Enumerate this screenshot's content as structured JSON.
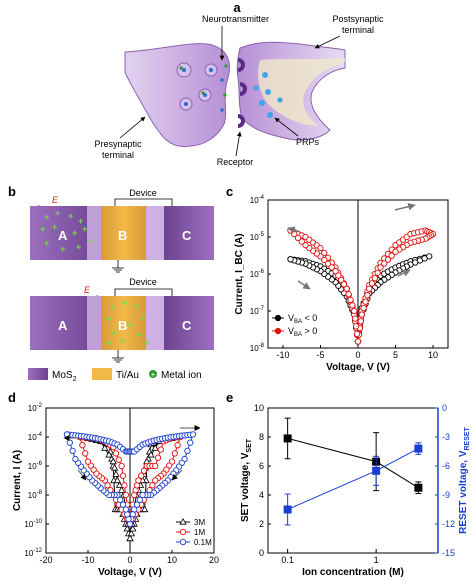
{
  "panels": {
    "a": "a",
    "b": "b",
    "c": "c",
    "d": "d",
    "e": "e"
  },
  "panel_a": {
    "labels": {
      "neurotransmitter": "Neurotransmitter",
      "postsynaptic_1": "Postsynaptic",
      "postsynaptic_2": "terminal",
      "presynaptic_1": "Presynaptic",
      "presynaptic_2": "terminal",
      "receptor": "Receptor",
      "prps": "PRPs"
    }
  },
  "panel_b": {
    "device_label": "Device",
    "field_label": "E",
    "regions": [
      "A",
      "B",
      "C"
    ],
    "legend": {
      "mos2": "MoS",
      "mos2_sub": "2",
      "tiau": "Ti/Au",
      "ion": "Metal ion"
    },
    "colors": {
      "mos2": "#7d55a0",
      "tiau": "#f0b03c",
      "ion": "#2a9a2a",
      "field": "#e02020"
    }
  },
  "chart_data": [
    {
      "id": "c",
      "type": "line",
      "xlabel": "Voltage, V (V)",
      "ylabel": "Current, I_BC (A)",
      "xlim": [
        -12,
        12
      ],
      "ylim_log10": [
        -8,
        -4
      ],
      "x_ticks": [
        "-10",
        "-5",
        "0",
        "5",
        "10"
      ],
      "y_ticks_exp": [
        "-8",
        "-7",
        "-6",
        "-5",
        "-4"
      ],
      "legend": {
        "placement": "bottom-left",
        "entries": [
          {
            "name": "V",
            "sub": "BA",
            "rel": " < 0"
          },
          {
            "name": "V",
            "sub": "BA",
            "rel": " > 0"
          }
        ]
      },
      "series": [
        {
          "name": "V_BA < 0",
          "color": "#000000",
          "marker": "circle",
          "x": [
            -9,
            -7,
            -5,
            -3,
            -1.5,
            -0.5,
            0,
            0.5,
            1.5,
            3,
            5,
            7,
            9.5,
            7,
            5,
            3,
            1.5,
            0.5,
            0,
            -0.5,
            -1.5,
            -3,
            -5,
            -7,
            -9
          ],
          "y": [
            2.5e-06,
            2.2e-06,
            1.6e-06,
            9e-07,
            4e-07,
            9e-08,
            1.5e-08,
            1.2e-07,
            4e-07,
            9e-07,
            1.5e-06,
            2.2e-06,
            3e-06,
            1.8e-06,
            1.1e-06,
            6e-07,
            3e-07,
            8e-08,
            1.5e-08,
            8e-08,
            2.5e-07,
            6e-07,
            1.2e-06,
            1.9e-06,
            2.5e-06
          ]
        },
        {
          "name": "V_BA > 0",
          "color": "#e01010",
          "marker": "circle",
          "x": [
            -9,
            -7,
            -5,
            -3,
            -1.5,
            -0.5,
            0,
            0.5,
            1.5,
            3,
            5,
            7,
            9,
            10,
            9,
            7,
            5,
            3,
            1.5,
            0.5,
            0,
            -0.5,
            -1.5,
            -3,
            -5,
            -7,
            -9
          ],
          "y": [
            1.5e-05,
            1e-05,
            5e-06,
            1.5e-06,
            4e-07,
            8e-08,
            1.5e-08,
            1e-07,
            5e-07,
            2e-06,
            6e-06,
            1.2e-05,
            1.5e-05,
            1.2e-05,
            9e-06,
            7e-06,
            4e-06,
            1.5e-06,
            4e-07,
            8e-08,
            1.5e-08,
            1e-07,
            4e-07,
            1.2e-06,
            3e-06,
            6e-06,
            1.5e-05
          ]
        }
      ]
    },
    {
      "id": "d",
      "type": "line",
      "xlabel": "Voltage, V (V)",
      "ylabel": "Current, I (A)",
      "xlim": [
        -20,
        20
      ],
      "ylim_log10": [
        -12,
        -2
      ],
      "x_ticks": [
        "-20",
        "-10",
        "0",
        "10",
        "20"
      ],
      "y_ticks_exp": [
        "-12",
        "-10",
        "-8",
        "-6",
        "-4",
        "-2"
      ],
      "legend": {
        "placement": "bottom-right",
        "entries": [
          {
            "name": "3M"
          },
          {
            "name": "1M"
          },
          {
            "name": "0.1M"
          }
        ]
      },
      "series": [
        {
          "name": "3M",
          "color": "#000000",
          "marker": "triangle",
          "x": [
            -10,
            -7,
            -5,
            -4,
            -3.5,
            -2,
            -1,
            0,
            1,
            2,
            3.5,
            4,
            5,
            7,
            10,
            7,
            4,
            3,
            1.5,
            0,
            -1.5,
            -3,
            -4,
            -7,
            -10
          ],
          "y": [
            8e-05,
            6e-05,
            3e-05,
            1e-06,
            1e-09,
            1e-09,
            1e-10,
            1e-11,
            1e-10,
            1e-09,
            1e-09,
            1e-06,
            3e-05,
            6e-05,
            8e-05,
            5e-05,
            2e-06,
            1e-07,
            1e-08,
            1e-11,
            1e-08,
            1e-07,
            2e-06,
            5e-05,
            8e-05
          ]
        },
        {
          "name": "1M",
          "color": "#e01010",
          "marker": "circle",
          "x": [
            -12,
            -10,
            -8,
            -6,
            -4,
            -2,
            -1,
            0,
            1,
            2,
            4,
            6,
            8,
            10,
            12,
            10,
            8,
            6,
            4,
            2,
            0,
            -2,
            -4,
            -6,
            -8,
            -10,
            -12
          ],
          "y": [
            0.0001,
            9e-05,
            8e-05,
            5e-05,
            2e-05,
            1e-06,
            1e-08,
            1e-10,
            1e-08,
            1e-07,
            1e-06,
            1e-06,
            5e-05,
            9e-05,
            0.0001,
            2e-06,
            3e-07,
            1e-07,
            1e-08,
            1e-09,
            1e-10,
            1e-09,
            1e-08,
            1e-07,
            3e-07,
            2e-06,
            0.0001
          ]
        },
        {
          "name": "0.1M",
          "color": "#1a3fd0",
          "marker": "circle",
          "x": [
            -15,
            -13,
            -11,
            -9,
            -7,
            -5,
            -3,
            -1,
            0,
            1,
            3,
            5,
            7,
            9,
            11,
            13,
            15,
            13,
            11,
            9,
            7,
            5,
            3,
            1,
            0,
            -1,
            -3,
            -5,
            -7,
            -9,
            -11,
            -13,
            -15
          ],
          "y": [
            0.00015,
            0.00013,
            0.00011,
            9e-05,
            7e-05,
            5e-05,
            3e-05,
            1e-05,
            1e-05,
            1e-05,
            3e-05,
            5e-05,
            7e-05,
            9e-05,
            0.00011,
            0.00013,
            0.00015,
            3e-06,
            5e-07,
            1e-07,
            3e-08,
            1e-08,
            1e-08,
            1e-09,
            1e-10,
            1e-09,
            1e-08,
            1e-08,
            3e-08,
            1e-07,
            5e-07,
            3e-06,
            0.00015
          ]
        }
      ]
    },
    {
      "id": "e",
      "type": "line",
      "xlabel": "Ion concentration (M)",
      "ylabel_left": "SET voltage, V",
      "ylabel_left_sub": "SET",
      "ylabel_right": "RESET voltage, V",
      "ylabel_right_sub": "RESET",
      "x_log": true,
      "x_ticks": [
        "0.1",
        "1"
      ],
      "ylim_left": [
        0,
        10
      ],
      "ylim_right": [
        -15,
        0
      ],
      "y_ticks_left": [
        "0",
        "2",
        "4",
        "6",
        "8",
        "10"
      ],
      "y_ticks_right": [
        "-15",
        "-12",
        "-9",
        "-6",
        "-3",
        "0"
      ],
      "series": [
        {
          "name": "SET",
          "axis": "left",
          "color": "#000000",
          "marker": "square",
          "x": [
            0.1,
            1,
            3
          ],
          "y": [
            7.9,
            6.3,
            4.5
          ],
          "err": [
            1.4,
            2.0,
            0.4
          ]
        },
        {
          "name": "RESET",
          "axis": "right",
          "color": "#1a3fd0",
          "marker": "square",
          "x": [
            0.1,
            1,
            3
          ],
          "y": [
            -10.5,
            -6.5,
            -4.2
          ],
          "err": [
            1.6,
            1.5,
            0.6
          ]
        }
      ]
    }
  ]
}
